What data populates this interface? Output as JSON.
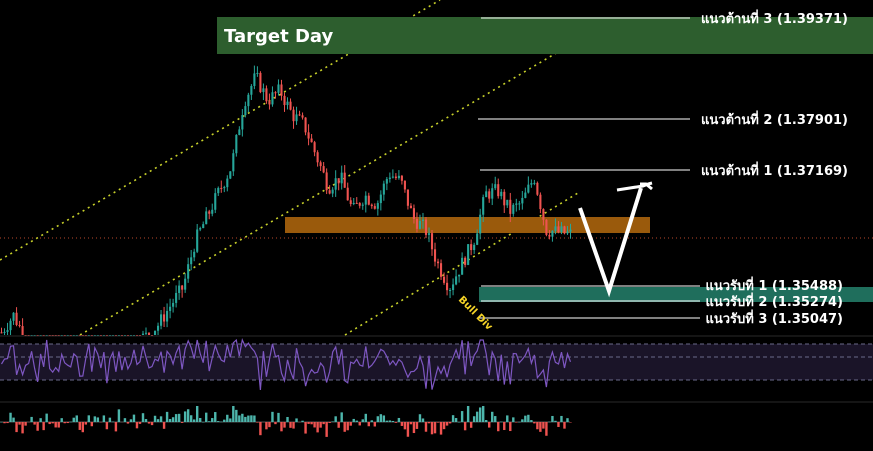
{
  "chart_data": {
    "type": "candlestick",
    "target_zone": {
      "label": "Target Day",
      "color": "#2d5e2e"
    },
    "resistance_levels": [
      {
        "label": "แนวต้านที่ 3 (1.39371)",
        "value": 1.39371
      },
      {
        "label": "แนวต้านที่ 2 (1.37901)",
        "value": 1.37901
      },
      {
        "label": "แนวต้านที่ 1 (1.37169)",
        "value": 1.37169
      }
    ],
    "support_levels": [
      {
        "label": "แนวรับที่ 1 (1.35488)",
        "value": 1.35488
      },
      {
        "label": "แนวรับที่ 2 (1.35274)",
        "value": 1.35274
      },
      {
        "label": "แนวรับที่ 3 (1.35047)",
        "value": 1.35047
      }
    ],
    "support_zone_color": "#1f6e5c",
    "pivot_zone": {
      "low": 1.3625,
      "high": 1.364,
      "color": "#9a5a0c"
    },
    "divergence_label": "Bull Div",
    "price_path": [
      1.348,
      1.3505,
      1.347,
      1.3445,
      1.3455,
      1.343,
      1.3445,
      1.3425,
      1.3448,
      1.344,
      1.3452,
      1.3468,
      1.3475,
      1.3492,
      1.352,
      1.3545,
      1.3612,
      1.3648,
      1.3685,
      1.372,
      1.3812,
      1.385,
      1.3815,
      1.383,
      1.3795,
      1.378,
      1.3735,
      1.369,
      1.3705,
      1.3655,
      1.3678,
      1.3665,
      1.371,
      1.3698,
      1.3645,
      1.363,
      1.358,
      1.3545,
      1.3578,
      1.3612,
      1.368,
      1.3685,
      1.3655,
      1.3668,
      1.3705,
      1.3628,
      1.3625,
      1.3622
    ],
    "forecast_path": [
      1.3645,
      1.3535,
      1.3692
    ],
    "colors": {
      "up": "#26a69a",
      "down": "#ef5350",
      "channel": "#c8d12a",
      "rsi": "#7e57c2",
      "hist_up": "#4db6ac",
      "hist_down": "#ef5350"
    }
  }
}
